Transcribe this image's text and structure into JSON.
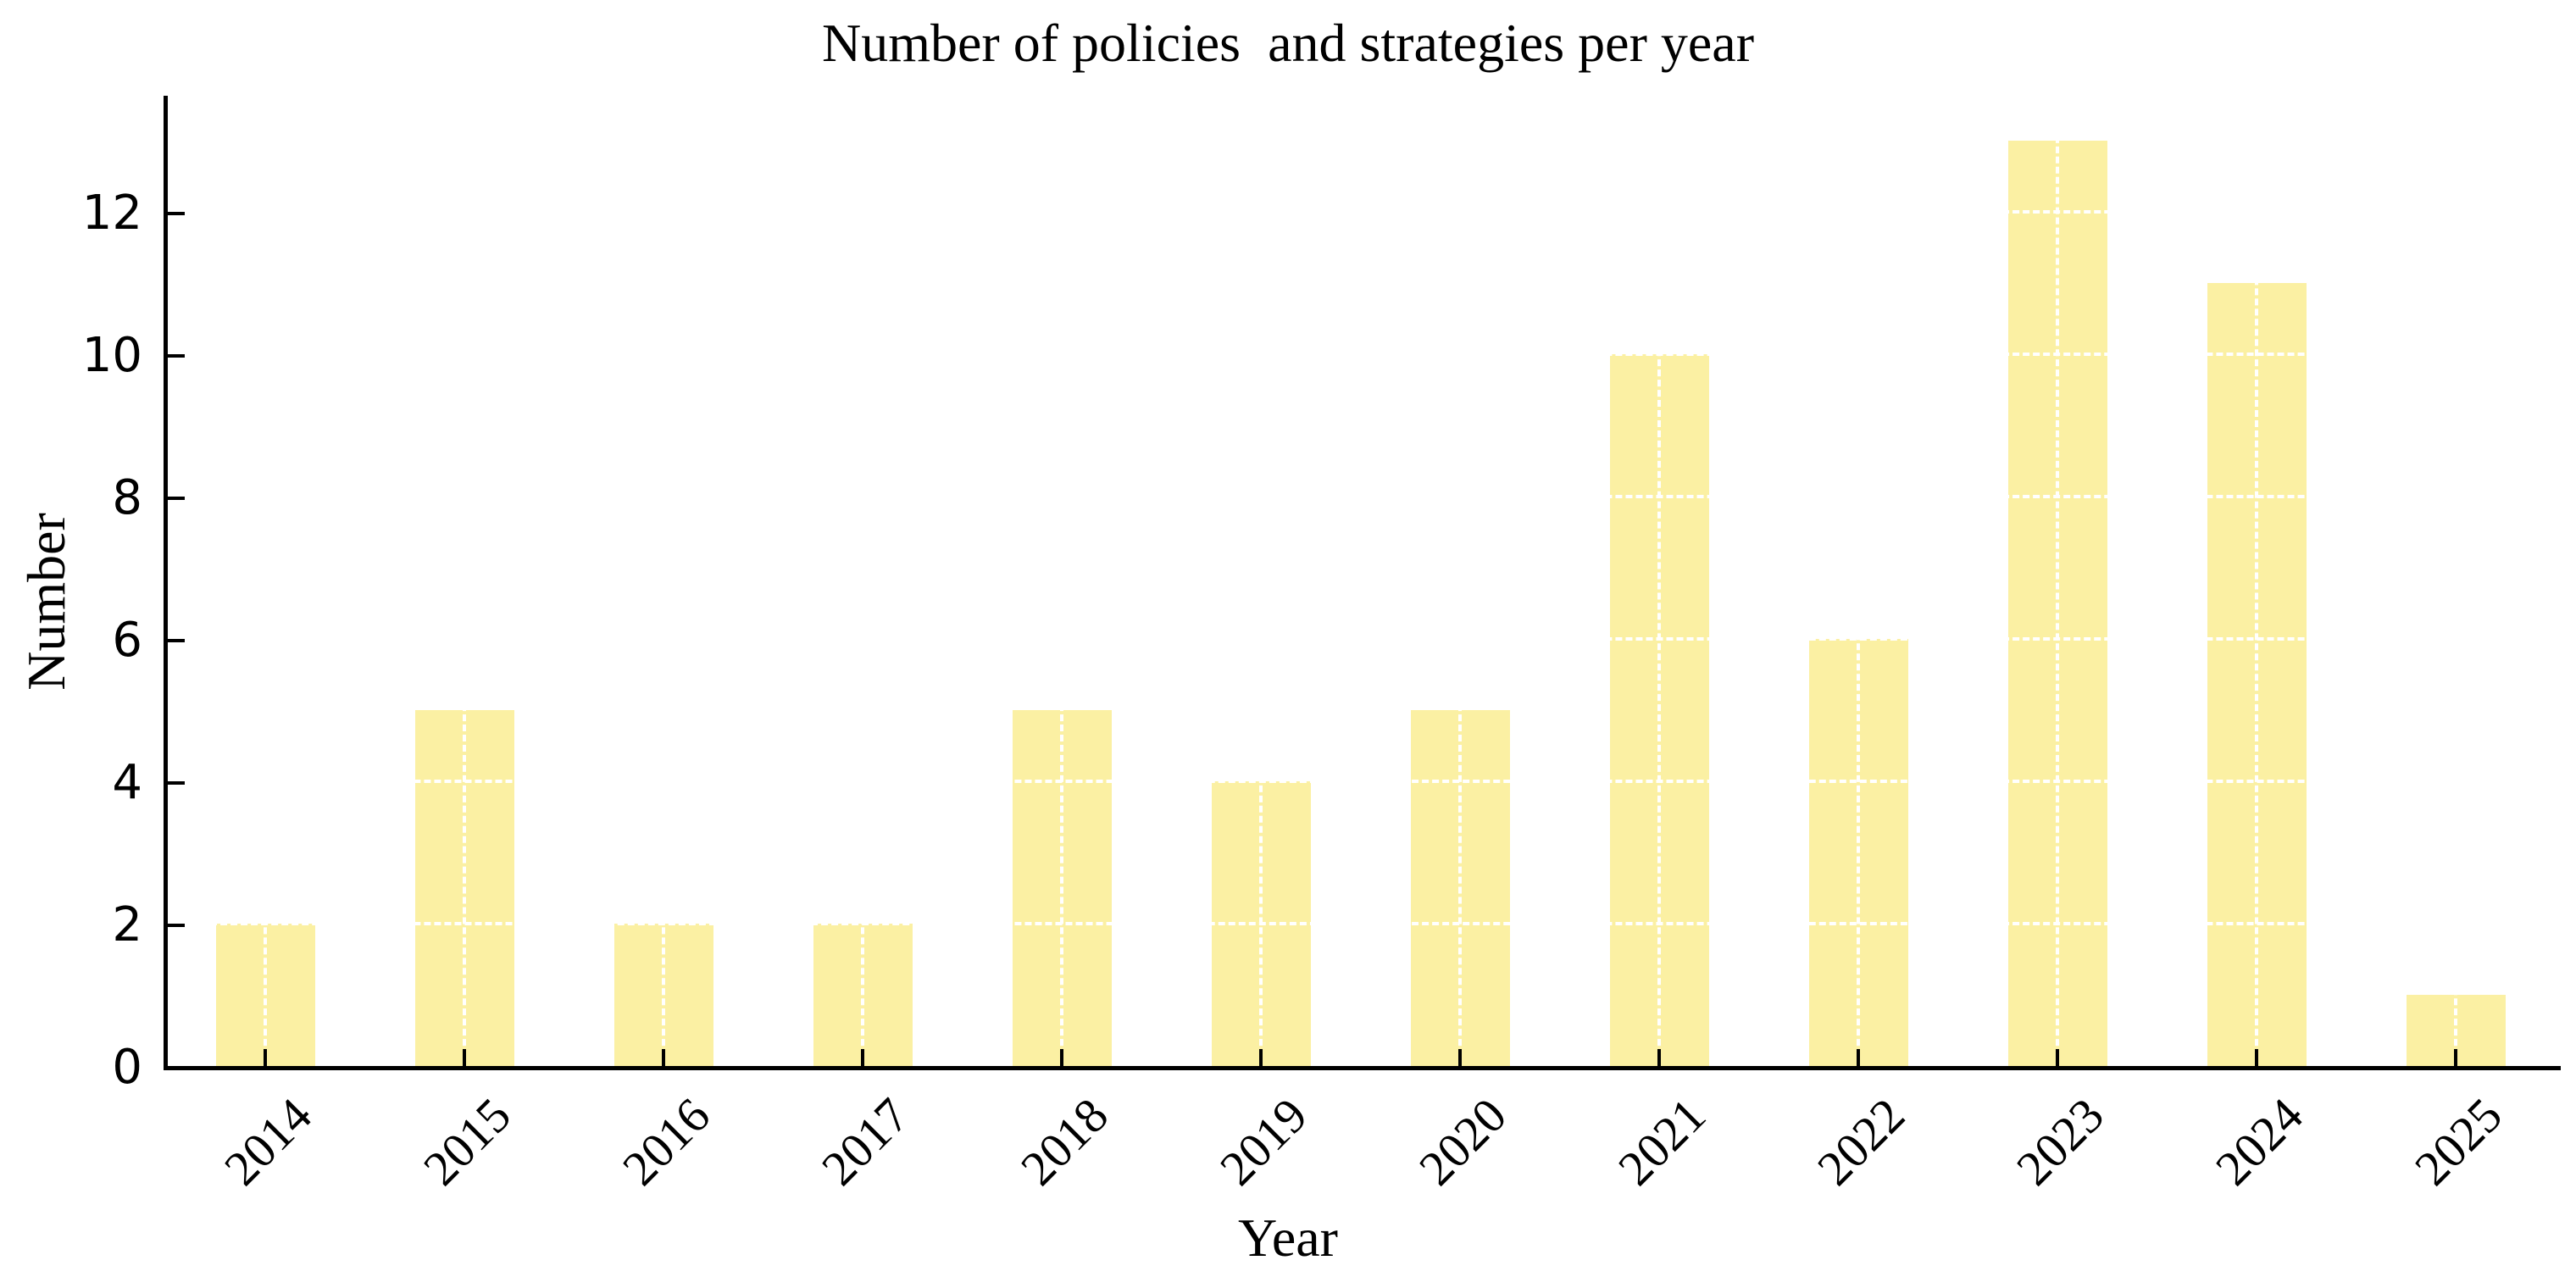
{
  "chart_data": {
    "type": "bar",
    "title": "Number of policies  and strategies per year",
    "xlabel": "Year",
    "ylabel": "Number",
    "categories": [
      "2014",
      "2015",
      "2016",
      "2017",
      "2018",
      "2019",
      "2020",
      "2021",
      "2022",
      "2023",
      "2024",
      "2025"
    ],
    "values": [
      2,
      5,
      2,
      2,
      5,
      4,
      5,
      10,
      6,
      13,
      11,
      1
    ],
    "yticks": [
      0,
      2,
      4,
      6,
      8,
      10,
      12
    ],
    "ylim": [
      0,
      13.65
    ],
    "bar_color": "#FBF0A3",
    "axis_color": "#000000",
    "text_color": "#000000",
    "background_color": "#ffffff",
    "grid": {
      "color": "#ffffff",
      "style": "dashed",
      "note": "white dashed gridlines at y ticks and bar centers, visible only over bars"
    },
    "tick_direction": "in",
    "x_tick_rotation_deg": 45,
    "legend": null
  }
}
